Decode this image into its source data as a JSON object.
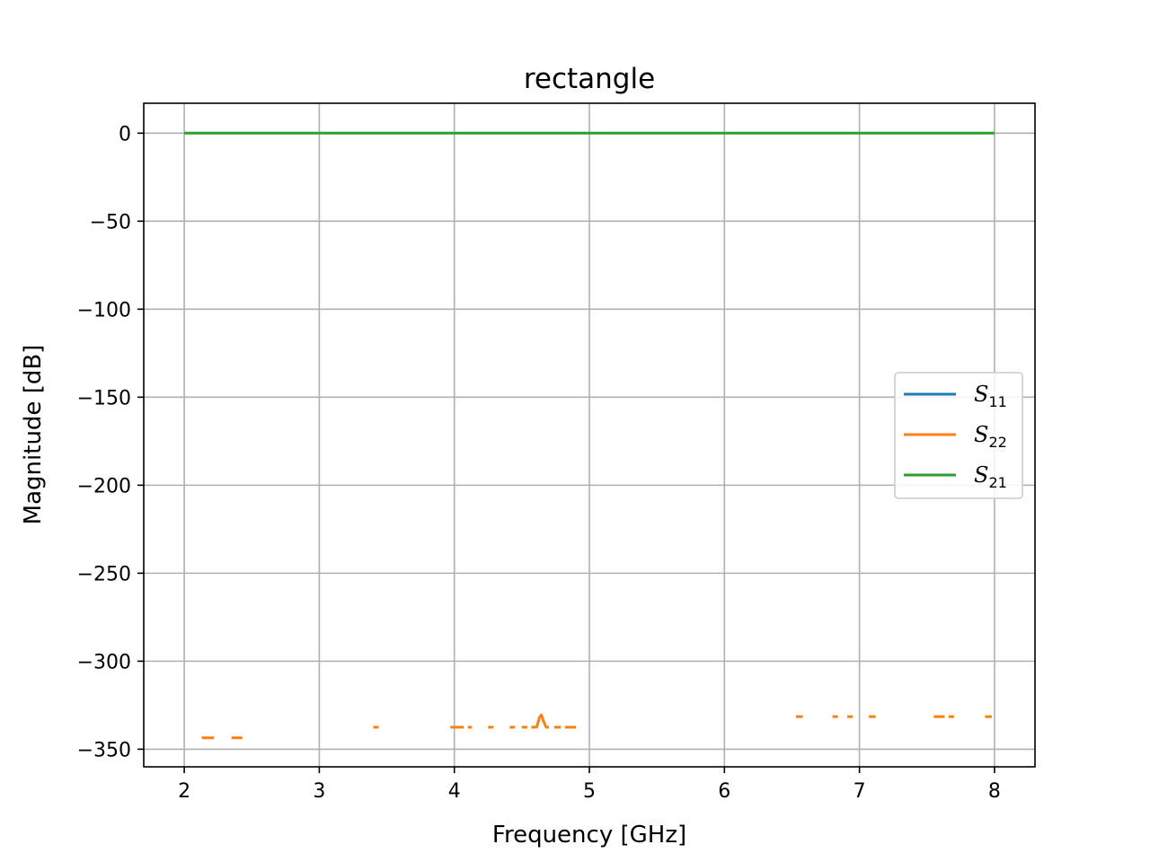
{
  "chart_data": {
    "type": "line",
    "title": "rectangle",
    "xlabel": "Frequency [GHz]",
    "ylabel": "Magnitude [dB]",
    "xlim": [
      1.7,
      8.3
    ],
    "ylim": [
      -360,
      17
    ],
    "xticks": [
      2,
      3,
      4,
      5,
      6,
      7,
      8
    ],
    "yticks": [
      0,
      -50,
      -100,
      -150,
      -200,
      -250,
      -300,
      -350
    ],
    "ytick_labels": [
      "0",
      "−50",
      "−100",
      "−150",
      "−200",
      "−250",
      "−300",
      "−350"
    ],
    "grid": true,
    "legend_position": "center-right",
    "series": [
      {
        "name": "S",
        "subscript": "11",
        "color": "#1f77b4",
        "segments": []
      },
      {
        "name": "S",
        "subscript": "22",
        "color": "#ff7f0e",
        "segments": [
          [
            [
              2.13,
              -343.5
            ],
            [
              2.22,
              -343.5
            ]
          ],
          [
            [
              2.35,
              -343.5
            ],
            [
              2.43,
              -343.5
            ]
          ],
          [
            [
              3.4,
              -337.5
            ],
            [
              3.44,
              -337.5
            ]
          ],
          [
            [
              3.97,
              -337.5
            ],
            [
              4.07,
              -337.5
            ]
          ],
          [
            [
              4.1,
              -337.5
            ],
            [
              4.13,
              -337.5
            ]
          ],
          [
            [
              4.25,
              -337.5
            ],
            [
              4.29,
              -337.5
            ]
          ],
          [
            [
              4.41,
              -337.5
            ],
            [
              4.45,
              -337.5
            ]
          ],
          [
            [
              4.5,
              -337.5
            ],
            [
              4.54,
              -337.5
            ]
          ],
          [
            [
              4.57,
              -337.5
            ],
            [
              4.61,
              -337.5
            ],
            [
              4.63,
              -332.0
            ],
            [
              4.645,
              -330.5
            ],
            [
              4.66,
              -334.0
            ],
            [
              4.68,
              -337.5
            ],
            [
              4.7,
              -337.5
            ]
          ],
          [
            [
              4.74,
              -337.5
            ],
            [
              4.79,
              -337.5
            ]
          ],
          [
            [
              4.82,
              -337.5
            ],
            [
              4.9,
              -337.5
            ]
          ],
          [
            [
              6.53,
              -331.5
            ],
            [
              6.58,
              -331.5
            ]
          ],
          [
            [
              6.8,
              -331.5
            ],
            [
              6.84,
              -331.5
            ]
          ],
          [
            [
              6.91,
              -331.5
            ],
            [
              6.95,
              -331.5
            ]
          ],
          [
            [
              7.07,
              -331.5
            ],
            [
              7.12,
              -331.5
            ]
          ],
          [
            [
              7.55,
              -331.5
            ],
            [
              7.63,
              -331.5
            ]
          ],
          [
            [
              7.66,
              -331.5
            ],
            [
              7.7,
              -331.5
            ]
          ],
          [
            [
              7.93,
              -331.5
            ],
            [
              7.98,
              -331.5
            ]
          ]
        ]
      },
      {
        "name": "S",
        "subscript": "21",
        "color": "#2ca02c",
        "segments": [
          [
            [
              2,
              0
            ],
            [
              8,
              0
            ]
          ]
        ]
      }
    ]
  }
}
